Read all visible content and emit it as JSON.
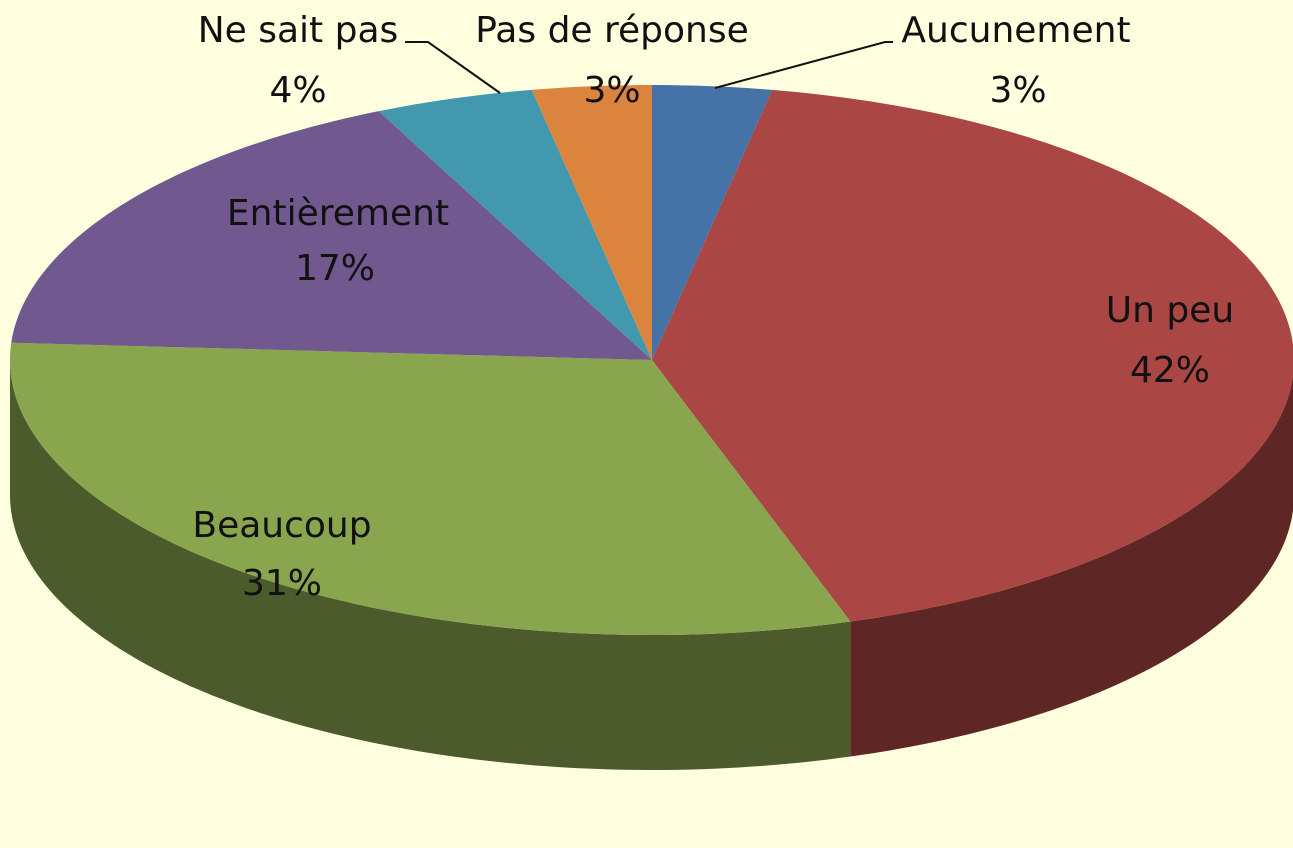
{
  "chart_data": {
    "type": "pie",
    "categories": [
      "Aucunement",
      "Un peu",
      "Beaucoup",
      "Entièrement",
      "Ne sait pas",
      "Pas de réponse"
    ],
    "values": [
      3,
      42,
      31,
      17,
      4,
      3
    ],
    "value_labels": [
      "3%",
      "42%",
      "31%",
      "17%",
      "4%",
      "3%"
    ],
    "colors": [
      "#4572a7",
      "#aa4643",
      "#89a54e",
      "#71588f",
      "#4198af",
      "#db843d"
    ]
  }
}
